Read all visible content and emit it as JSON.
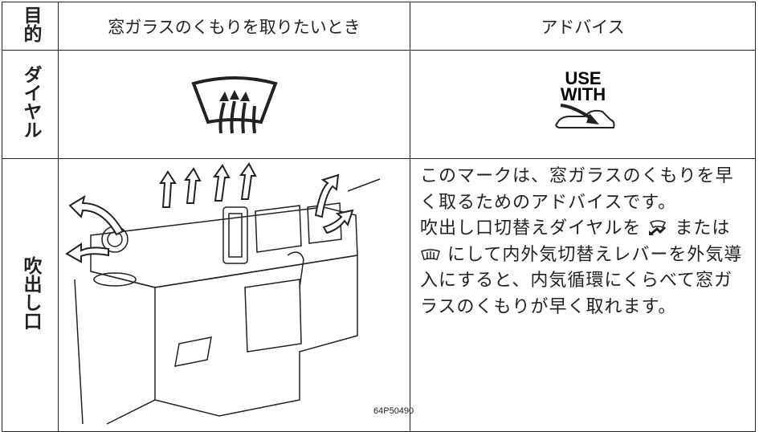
{
  "table": {
    "header": [
      "目的",
      "窓ガラスのくもりを取りたいとき",
      "アドバイス"
    ],
    "rows": [
      {
        "label": "ダイヤル",
        "advice_icon": [
          "USE",
          "WITH"
        ]
      },
      {
        "label": "吹出し口",
        "figure_code": "64P50490",
        "advice": [
          "このマークは、窓ガラスのくもりを早く取るためのアドバイスです。",
          "吹出し口切替えダイヤルを",
          "または",
          "にして内外気切替えレバーを外気導入にすると、内気循環にくらべて窓ガラスのくもりが早く取れます。"
        ]
      }
    ]
  }
}
